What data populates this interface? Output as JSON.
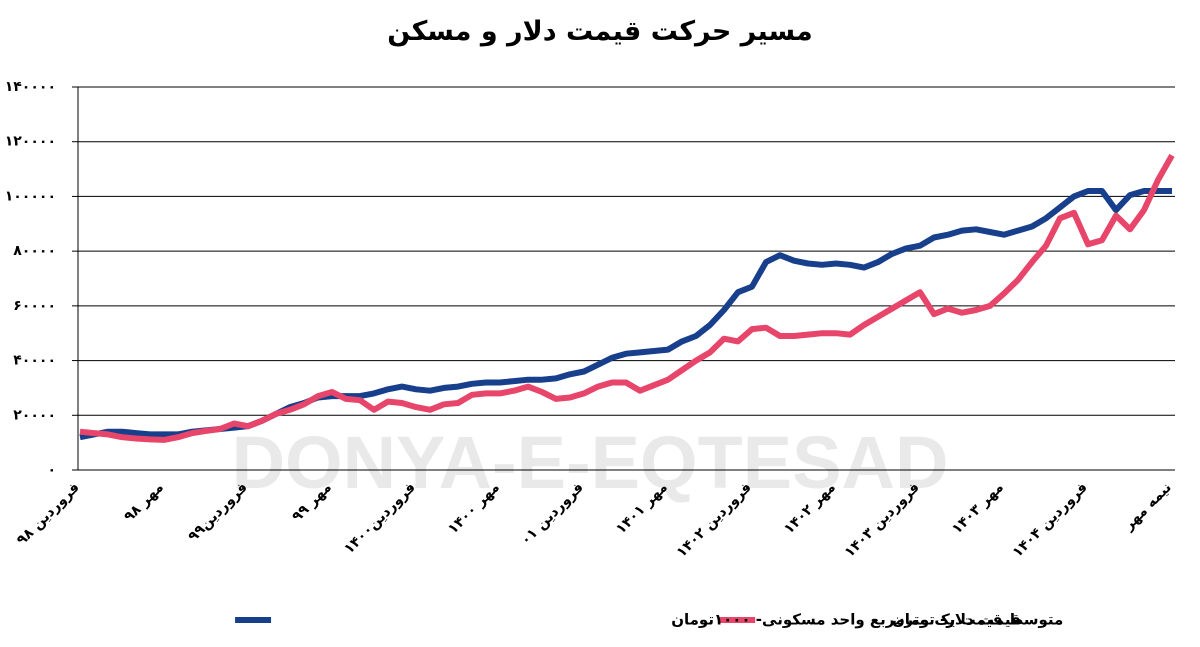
{
  "chart_data": {
    "type": "line",
    "title": "مسیر حرکت قیمت دلار و مسکن",
    "watermark": "DONYA-E-EQTESAD",
    "categories": [
      "فروردین ۹۸",
      null,
      null,
      null,
      null,
      null,
      "مهر ۹۸",
      null,
      null,
      null,
      null,
      null,
      "فروردین۹۹",
      null,
      null,
      null,
      null,
      null,
      "مهر ۹۹",
      null,
      null,
      null,
      null,
      null,
      "فروردین۱۴۰۰",
      null,
      null,
      null,
      null,
      null,
      "مهر ۱۴۰۰",
      null,
      null,
      null,
      null,
      null,
      "فروردین ۰۱",
      null,
      null,
      null,
      null,
      null,
      "مهر ۱۴۰۱",
      null,
      null,
      null,
      null,
      null,
      "فروردین ۱۴۰۲",
      null,
      null,
      null,
      null,
      null,
      "مهر ۱۴۰۲",
      null,
      null,
      null,
      null,
      null,
      "فروردین ۱۴۰۳",
      null,
      null,
      null,
      null,
      null,
      "مهر ۱۴۰۳",
      null,
      null,
      null,
      null,
      null,
      "فروردین ۱۴۰۴",
      null,
      null,
      null,
      null,
      null,
      "نیمه مهر"
    ],
    "series": [
      {
        "name": "قیمت دلار- تومان",
        "color": "#e8456b",
        "values": [
          14000,
          13500,
          13000,
          12000,
          11500,
          11200,
          11000,
          12000,
          13500,
          14300,
          15000,
          17000,
          16000,
          18000,
          20500,
          22000,
          24000,
          27000,
          28500,
          26000,
          25500,
          22000,
          25000,
          24500,
          23000,
          22000,
          24000,
          24500,
          27500,
          28000,
          28000,
          29000,
          30500,
          28500,
          26000,
          26500,
          28000,
          30500,
          32000,
          32000,
          29000,
          31000,
          33000,
          36500,
          40000,
          43000,
          48000,
          47000,
          51500,
          52000,
          49000,
          49000,
          49500,
          50000,
          50000,
          49500,
          53000,
          56000,
          59000,
          62000,
          65000,
          57000,
          59000,
          57500,
          58500,
          60000,
          64500,
          69500,
          76000,
          82000,
          92000,
          94000,
          82500,
          84000,
          93000,
          88000,
          95000,
          106000,
          115000
        ]
      },
      {
        "name": "متوسط قیمت یک مترمربع واحد مسکونی- ۱۰۰۰تومان",
        "color": "#173f8c",
        "values": [
          12000,
          13000,
          14000,
          14000,
          13500,
          13000,
          13000,
          13000,
          14000,
          14500,
          15000,
          15500,
          16000,
          18000,
          20500,
          23000,
          24500,
          26500,
          27000,
          27000,
          27000,
          28000,
          29500,
          30500,
          29500,
          29000,
          30000,
          30500,
          31500,
          32000,
          32000,
          32500,
          33000,
          33000,
          33500,
          35000,
          36000,
          38500,
          41000,
          42500,
          43000,
          43500,
          44000,
          47000,
          49000,
          53000,
          58500,
          65000,
          67000,
          76000,
          78500,
          76500,
          75500,
          75000,
          75500,
          75000,
          74000,
          76000,
          79000,
          81000,
          82000,
          85000,
          86000,
          87500,
          88000,
          87000,
          86000,
          87500,
          89000,
          92000,
          96000,
          100000,
          102000,
          102000,
          95000,
          100500,
          102000,
          102000,
          102000
        ]
      }
    ],
    "ylim": [
      0,
      140000
    ],
    "yticks": [
      {
        "value": 0,
        "label": "۰"
      },
      {
        "value": 20000,
        "label": "۲۰۰۰۰"
      },
      {
        "value": 40000,
        "label": "۴۰۰۰۰"
      },
      {
        "value": 60000,
        "label": "۶۰۰۰۰"
      },
      {
        "value": 80000,
        "label": "۸۰۰۰۰"
      },
      {
        "value": 100000,
        "label": "۱۰۰۰۰۰"
      },
      {
        "value": 120000,
        "label": "۱۲۰۰۰۰"
      },
      {
        "value": 140000,
        "label": "۱۴۰۰۰۰"
      }
    ],
    "grid": true
  }
}
